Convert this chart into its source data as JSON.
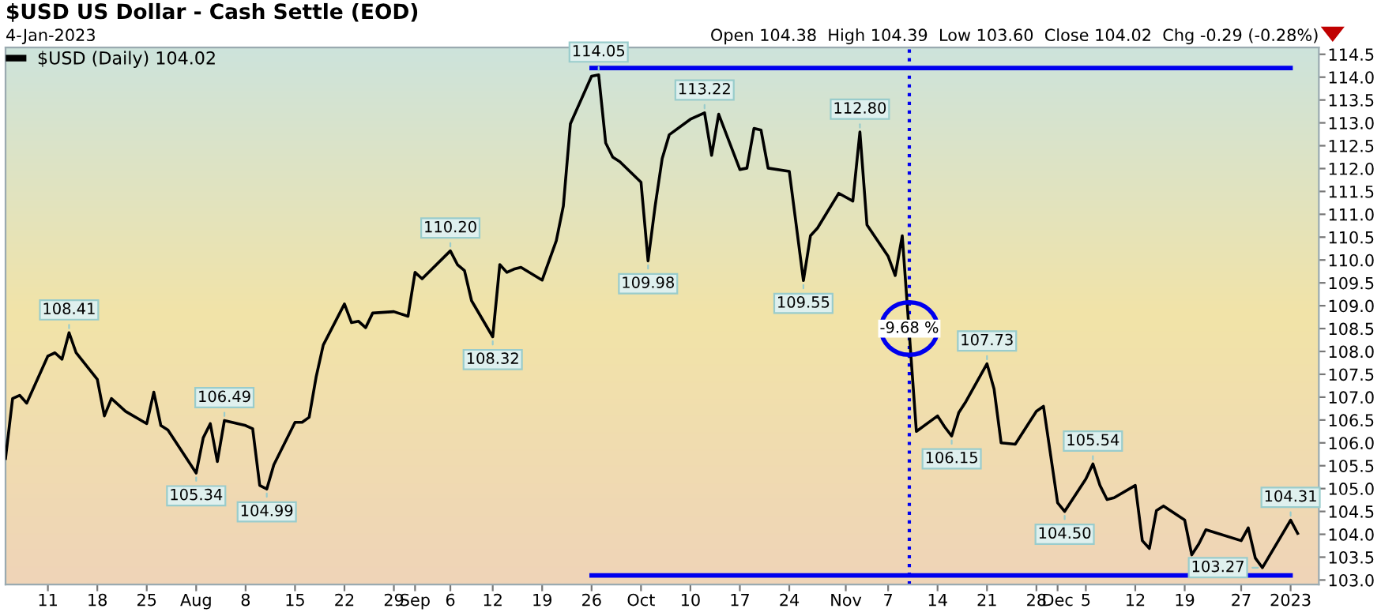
{
  "chart_data": {
    "type": "line",
    "title": "$USD US Dollar - Cash Settle (EOD)",
    "subtitle": "4-Jan-2023",
    "annotations": [
      "Open 104.38  High 104.39  Low 103.60  Close 104.02  Chg -0.29 (-0.28%)",
      {
        "text": "108.41",
        "x": "2022-07-14",
        "y": 108.41
      },
      {
        "text": "105.34",
        "x": "2022-08-01",
        "y": 105.34
      },
      {
        "text": "106.49",
        "x": "2022-08-05",
        "y": 106.49
      },
      {
        "text": "104.99",
        "x": "2022-08-11",
        "y": 104.99
      },
      {
        "text": "110.20",
        "x": "2022-09-06",
        "y": 110.2
      },
      {
        "text": "108.32",
        "x": "2022-09-12",
        "y": 108.32
      },
      {
        "text": "114.05",
        "x": "2022-09-27",
        "y": 114.05
      },
      {
        "text": "109.98",
        "x": "2022-10-04",
        "y": 109.98
      },
      {
        "text": "113.22",
        "x": "2022-10-12",
        "y": 113.22
      },
      {
        "text": "109.55",
        "x": "2022-10-26",
        "y": 109.55
      },
      {
        "text": "112.80",
        "x": "2022-11-03",
        "y": 112.8
      },
      {
        "text": "-9.68 %",
        "x": "2022-11-10",
        "y": 108.5
      },
      {
        "text": "106.15",
        "x": "2022-11-16",
        "y": 106.15
      },
      {
        "text": "107.73",
        "x": "2022-11-21",
        "y": 107.73
      },
      {
        "text": "104.50",
        "x": "2022-12-02",
        "y": 104.5
      },
      {
        "text": "105.54",
        "x": "2022-12-06",
        "y": 105.54
      },
      {
        "text": "103.27",
        "x": "2022-12-30",
        "y": 103.27
      },
      {
        "text": "104.31",
        "x": "2023-01-03",
        "y": 104.31
      }
    ],
    "xlim": [
      "2022-07-05",
      "2023-01-07"
    ],
    "ylim": [
      102.9,
      114.65
    ],
    "xticks": [
      {
        "value": "2022-07-11",
        "label": "11"
      },
      {
        "value": "2022-07-18",
        "label": "18"
      },
      {
        "value": "2022-07-25",
        "label": "25"
      },
      {
        "value": "2022-08-01",
        "label": "Aug"
      },
      {
        "value": "2022-08-08",
        "label": "8"
      },
      {
        "value": "2022-08-15",
        "label": "15"
      },
      {
        "value": "2022-08-22",
        "label": "22"
      },
      {
        "value": "2022-08-29",
        "label": "29"
      },
      {
        "value": "2022-09-01",
        "label": "Sep"
      },
      {
        "value": "2022-09-06",
        "label": "6"
      },
      {
        "value": "2022-09-12",
        "label": "12"
      },
      {
        "value": "2022-09-19",
        "label": "19"
      },
      {
        "value": "2022-09-26",
        "label": "26"
      },
      {
        "value": "2022-10-03",
        "label": "Oct"
      },
      {
        "value": "2022-10-10",
        "label": "10"
      },
      {
        "value": "2022-10-17",
        "label": "17"
      },
      {
        "value": "2022-10-24",
        "label": "24"
      },
      {
        "value": "2022-11-01",
        "label": "Nov"
      },
      {
        "value": "2022-11-07",
        "label": "7"
      },
      {
        "value": "2022-11-14",
        "label": "14"
      },
      {
        "value": "2022-11-21",
        "label": "21"
      },
      {
        "value": "2022-11-28",
        "label": "28"
      },
      {
        "value": "2022-12-01",
        "label": "Dec"
      },
      {
        "value": "2022-12-05",
        "label": "5"
      },
      {
        "value": "2022-12-12",
        "label": "12"
      },
      {
        "value": "2022-12-19",
        "label": "19"
      },
      {
        "value": "2022-12-27",
        "label": "27"
      },
      {
        "value": "2023-01-03",
        "label": "2023"
      }
    ],
    "yticks": [
      {
        "value": 103,
        "label": "103.0"
      },
      {
        "value": 103.5,
        "label": "103.5"
      },
      {
        "value": 104,
        "label": "104.0"
      },
      {
        "value": 104.5,
        "label": "104.5"
      },
      {
        "value": 105,
        "label": "105.0"
      },
      {
        "value": 105.5,
        "label": "105.5"
      },
      {
        "value": 106,
        "label": "106.0"
      },
      {
        "value": 106.5,
        "label": "106.5"
      },
      {
        "value": 107,
        "label": "107.0"
      },
      {
        "value": 107.5,
        "label": "107.5"
      },
      {
        "value": 108,
        "label": "108.0"
      },
      {
        "value": 108.5,
        "label": "108.5"
      },
      {
        "value": 109,
        "label": "109.0"
      },
      {
        "value": 109.5,
        "label": "109.5"
      },
      {
        "value": 110,
        "label": "110.0"
      },
      {
        "value": 110.5,
        "label": "110.5"
      },
      {
        "value": 111,
        "label": "111.0"
      },
      {
        "value": 111.5,
        "label": "111.5"
      },
      {
        "value": 112,
        "label": "112.0"
      },
      {
        "value": 112.5,
        "label": "112.5"
      },
      {
        "value": 113,
        "label": "113.0"
      },
      {
        "value": 113.5,
        "label": "113.5"
      },
      {
        "value": 114,
        "label": "114.0"
      },
      {
        "value": 114.5,
        "label": "114.5"
      }
    ],
    "grid": false,
    "legend": "top left",
    "marker": "none",
    "line_style": "solid",
    "ref_lines": [
      {
        "axis": "x",
        "value": "2022-11-10",
        "color": "#0000ee",
        "line_style": "dotted"
      }
    ],
    "series": [
      {
        "name": "$USD (Daily) 104.02",
        "color": "#000000",
        "x": [
          "2022-07-05",
          "2022-07-06",
          "2022-07-07",
          "2022-07-08",
          "2022-07-11",
          "2022-07-12",
          "2022-07-13",
          "2022-07-14",
          "2022-07-15",
          "2022-07-18",
          "2022-07-19",
          "2022-07-20",
          "2022-07-22",
          "2022-07-25",
          "2022-07-26",
          "2022-07-27",
          "2022-07-28",
          "2022-08-01",
          "2022-08-02",
          "2022-08-03",
          "2022-08-04",
          "2022-08-05",
          "2022-08-08",
          "2022-08-09",
          "2022-08-10",
          "2022-08-11",
          "2022-08-12",
          "2022-08-15",
          "2022-08-16",
          "2022-08-17",
          "2022-08-18",
          "2022-08-19",
          "2022-08-22",
          "2022-08-23",
          "2022-08-24",
          "2022-08-25",
          "2022-08-26",
          "2022-08-29",
          "2022-08-31",
          "2022-09-01",
          "2022-09-02",
          "2022-09-06",
          "2022-09-07",
          "2022-09-08",
          "2022-09-09",
          "2022-09-12",
          "2022-09-13",
          "2022-09-14",
          "2022-09-15",
          "2022-09-16",
          "2022-09-19",
          "2022-09-21",
          "2022-09-22",
          "2022-09-23",
          "2022-09-26",
          "2022-09-27",
          "2022-09-28",
          "2022-09-29",
          "2022-09-30",
          "2022-10-03",
          "2022-10-04",
          "2022-10-05",
          "2022-10-06",
          "2022-10-07",
          "2022-10-10",
          "2022-10-12",
          "2022-10-13",
          "2022-10-14",
          "2022-10-17",
          "2022-10-18",
          "2022-10-19",
          "2022-10-20",
          "2022-10-21",
          "2022-10-24",
          "2022-10-26",
          "2022-10-27",
          "2022-10-28",
          "2022-10-31",
          "2022-11-02",
          "2022-11-03",
          "2022-11-04",
          "2022-11-07",
          "2022-11-08",
          "2022-11-09",
          "2022-11-11",
          "2022-11-14",
          "2022-11-15",
          "2022-11-16",
          "2022-11-17",
          "2022-11-18",
          "2022-11-21",
          "2022-11-22",
          "2022-11-23",
          "2022-11-25",
          "2022-11-28",
          "2022-11-29",
          "2022-12-01",
          "2022-12-02",
          "2022-12-05",
          "2022-12-06",
          "2022-12-07",
          "2022-12-08",
          "2022-12-09",
          "2022-12-12",
          "2022-12-13",
          "2022-12-14",
          "2022-12-15",
          "2022-12-16",
          "2022-12-19",
          "2022-12-20",
          "2022-12-21",
          "2022-12-22",
          "2022-12-27",
          "2022-12-28",
          "2022-12-29",
          "2022-12-30",
          "2023-01-03",
          "2023-01-04"
        ],
        "values": [
          105.66,
          106.97,
          107.04,
          106.87,
          107.9,
          107.97,
          107.83,
          108.41,
          107.97,
          107.39,
          106.59,
          106.97,
          106.69,
          106.42,
          107.11,
          106.38,
          106.28,
          105.34,
          106.11,
          106.42,
          105.59,
          106.49,
          106.38,
          106.31,
          105.07,
          104.99,
          105.52,
          106.45,
          106.45,
          106.56,
          107.45,
          108.14,
          109.04,
          108.63,
          108.66,
          108.52,
          108.84,
          108.87,
          108.77,
          109.73,
          109.59,
          110.2,
          109.9,
          109.77,
          109.11,
          108.32,
          109.9,
          109.73,
          109.8,
          109.84,
          109.56,
          110.42,
          111.18,
          112.98,
          114.02,
          114.05,
          112.56,
          112.25,
          112.15,
          111.7,
          109.98,
          111.18,
          112.22,
          112.74,
          113.08,
          113.22,
          112.29,
          113.19,
          111.98,
          112.01,
          112.88,
          112.84,
          112.01,
          111.94,
          109.55,
          110.53,
          110.7,
          111.46,
          111.29,
          112.8,
          110.77,
          110.08,
          109.66,
          110.53,
          106.25,
          106.59,
          106.35,
          106.15,
          106.66,
          106.9,
          107.73,
          107.18,
          106.0,
          105.97,
          106.69,
          106.8,
          104.69,
          104.5,
          105.21,
          105.54,
          105.07,
          104.76,
          104.8,
          105.07,
          103.86,
          103.69,
          104.52,
          104.62,
          104.31,
          103.55,
          103.79,
          104.1,
          103.86,
          104.14,
          103.48,
          103.27,
          104.31,
          104.02
        ]
      },
      {
        "type": "line",
        "color": "#0000ee",
        "x": [
          "2022-09-26",
          "2023-01-03"
        ],
        "values": [
          114.2,
          114.2
        ]
      },
      {
        "type": "line",
        "color": "#0000ee",
        "x": [
          "2022-09-26",
          "2023-01-03"
        ],
        "values": [
          103.1,
          103.1
        ]
      }
    ]
  }
}
